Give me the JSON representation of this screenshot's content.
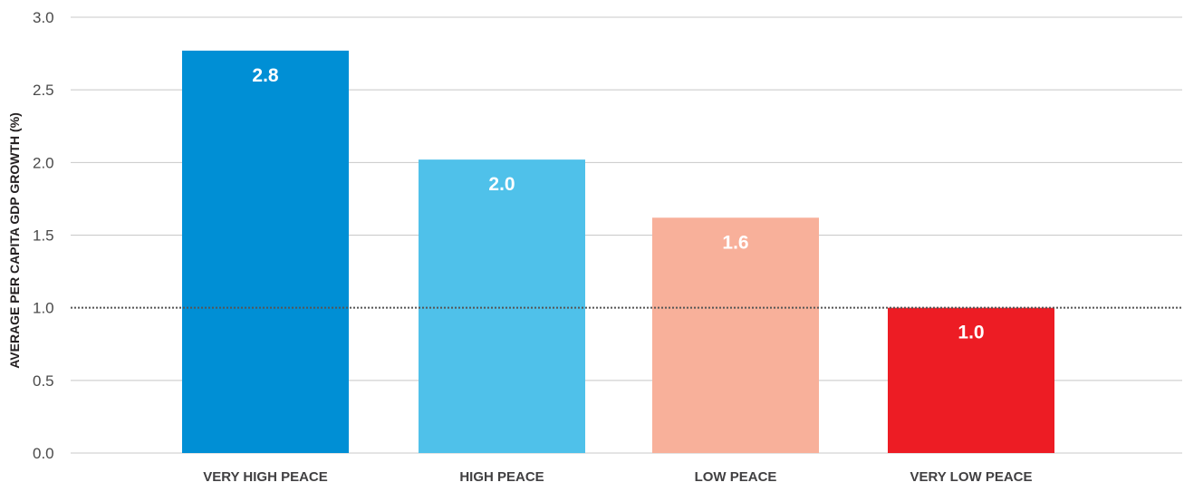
{
  "chart_data": {
    "type": "bar",
    "ylabel": "AVERAGE PER CAPITA GDP GROWTH (%)",
    "xlabel": "",
    "categories": [
      "VERY HIGH PEACE",
      "HIGH PEACE",
      "LOW PEACE",
      "VERY LOW PEACE"
    ],
    "values": [
      2.77,
      2.02,
      1.62,
      1.0
    ],
    "value_labels": [
      "2.8",
      "2.0",
      "1.6",
      "1.0"
    ],
    "colors": [
      "#008fd5",
      "#4fc1ea",
      "#f8b09a",
      "#ed1c24"
    ],
    "ylim": [
      0,
      3.0
    ],
    "yticks": [
      0,
      0.5,
      1.0,
      1.5,
      2.0,
      2.5,
      3.0
    ],
    "ytick_labels": [
      "0.0",
      "0.5",
      "1.0",
      "1.5",
      "2.0",
      "2.5",
      "3.0"
    ],
    "grid": true,
    "reference_line": {
      "value": 1.0,
      "style": "dotted"
    }
  }
}
